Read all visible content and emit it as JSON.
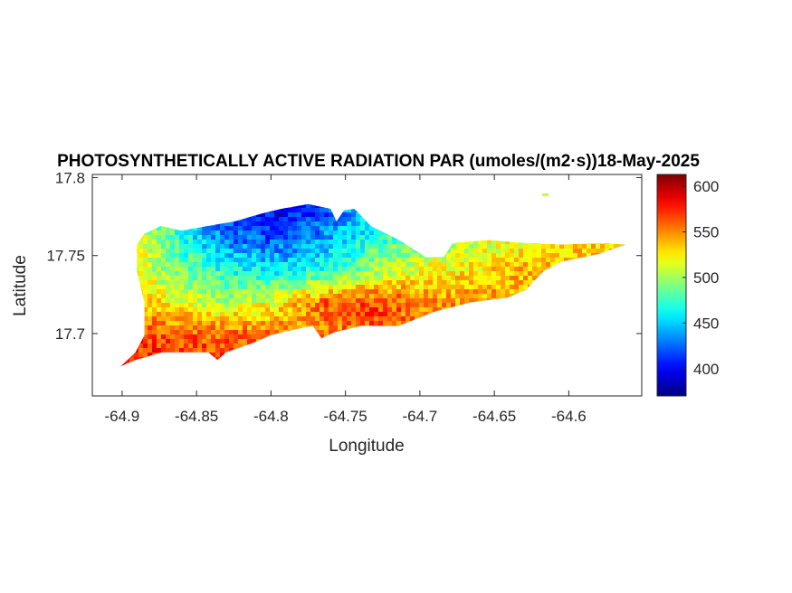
{
  "chart_data": {
    "type": "heatmap",
    "title": "PHOTOSYNTHETICALLY ACTIVE RADIATION PAR (umoles/(m2·s))18-May-2025",
    "xlabel": "Longitude",
    "ylabel": "Latitude",
    "xlim": [
      -64.92,
      -64.551
    ],
    "ylim": [
      17.66,
      17.802
    ],
    "xticks": [
      -64.9,
      -64.85,
      -64.8,
      -64.75,
      -64.7,
      -64.65,
      -64.6
    ],
    "xtick_labels": [
      "-64.9",
      "-64.85",
      "-64.8",
      "-64.75",
      "-64.7",
      "-64.65",
      "-64.6"
    ],
    "yticks": [
      17.7,
      17.75,
      17.8
    ],
    "ytick_labels": [
      "17.7",
      "17.75",
      "17.8"
    ],
    "colorbar": {
      "colormap": "jet",
      "clim": [
        370,
        613
      ],
      "ticks": [
        400,
        450,
        500,
        550,
        600
      ],
      "tick_labels": [
        "400",
        "450",
        "500",
        "550",
        "600"
      ]
    },
    "grid_lon": [
      -64.9,
      -64.866,
      -64.832,
      -64.798,
      -64.764,
      -64.73,
      -64.696,
      -64.662,
      -64.628,
      -64.594,
      -64.56
    ],
    "grid_lat": [
      17.78,
      17.76,
      17.74,
      17.72,
      17.7,
      17.68
    ],
    "values": [
      [
        500,
        470,
        420,
        395,
        410,
        460,
        480,
        500,
        510,
        520,
        530
      ],
      [
        540,
        480,
        430,
        420,
        440,
        470,
        490,
        510,
        520,
        525,
        535
      ],
      [
        530,
        490,
        470,
        460,
        470,
        500,
        520,
        530,
        540,
        545,
        540
      ],
      [
        550,
        520,
        500,
        520,
        560,
        570,
        550,
        545,
        540,
        535,
        530
      ],
      [
        570,
        560,
        560,
        555,
        550,
        560,
        550,
        545,
        540,
        535,
        530
      ],
      [
        575,
        575,
        570,
        560,
        555,
        555,
        550,
        545,
        540,
        535,
        530
      ]
    ],
    "land_outline_lonlat": [
      [
        -64.901,
        17.679
      ],
      [
        -64.891,
        17.688
      ],
      [
        -64.885,
        17.699
      ],
      [
        -64.885,
        17.72
      ],
      [
        -64.89,
        17.74
      ],
      [
        -64.89,
        17.757
      ],
      [
        -64.885,
        17.764
      ],
      [
        -64.874,
        17.769
      ],
      [
        -64.86,
        17.766
      ],
      [
        -64.842,
        17.769
      ],
      [
        -64.824,
        17.772
      ],
      [
        -64.806,
        17.777
      ],
      [
        -64.793,
        17.78
      ],
      [
        -64.775,
        17.783
      ],
      [
        -64.76,
        17.78
      ],
      [
        -64.756,
        17.772
      ],
      [
        -64.751,
        17.779
      ],
      [
        -64.744,
        17.78
      ],
      [
        -64.733,
        17.769
      ],
      [
        -64.714,
        17.76
      ],
      [
        -64.696,
        17.749
      ],
      [
        -64.684,
        17.749
      ],
      [
        -64.678,
        17.758
      ],
      [
        -64.654,
        17.76
      ],
      [
        -64.629,
        17.758
      ],
      [
        -64.605,
        17.757
      ],
      [
        -64.58,
        17.758
      ],
      [
        -64.562,
        17.757
      ],
      [
        -64.58,
        17.751
      ],
      [
        -64.605,
        17.746
      ],
      [
        -64.617,
        17.74
      ],
      [
        -64.629,
        17.728
      ],
      [
        -64.641,
        17.723
      ],
      [
        -64.666,
        17.72
      ],
      [
        -64.69,
        17.714
      ],
      [
        -64.714,
        17.705
      ],
      [
        -64.739,
        17.705
      ],
      [
        -64.757,
        17.701
      ],
      [
        -64.766,
        17.697
      ],
      [
        -64.772,
        17.705
      ],
      [
        -64.787,
        17.702
      ],
      [
        -64.8,
        17.699
      ],
      [
        -64.812,
        17.694
      ],
      [
        -64.83,
        17.688
      ],
      [
        -64.836,
        17.683
      ],
      [
        -64.842,
        17.688
      ],
      [
        -64.873,
        17.688
      ],
      [
        -64.891,
        17.683
      ],
      [
        -64.901,
        17.679
      ]
    ],
    "isolated_points": [
      {
        "lon": -64.616,
        "lat": 17.789,
        "value": 505
      }
    ]
  }
}
